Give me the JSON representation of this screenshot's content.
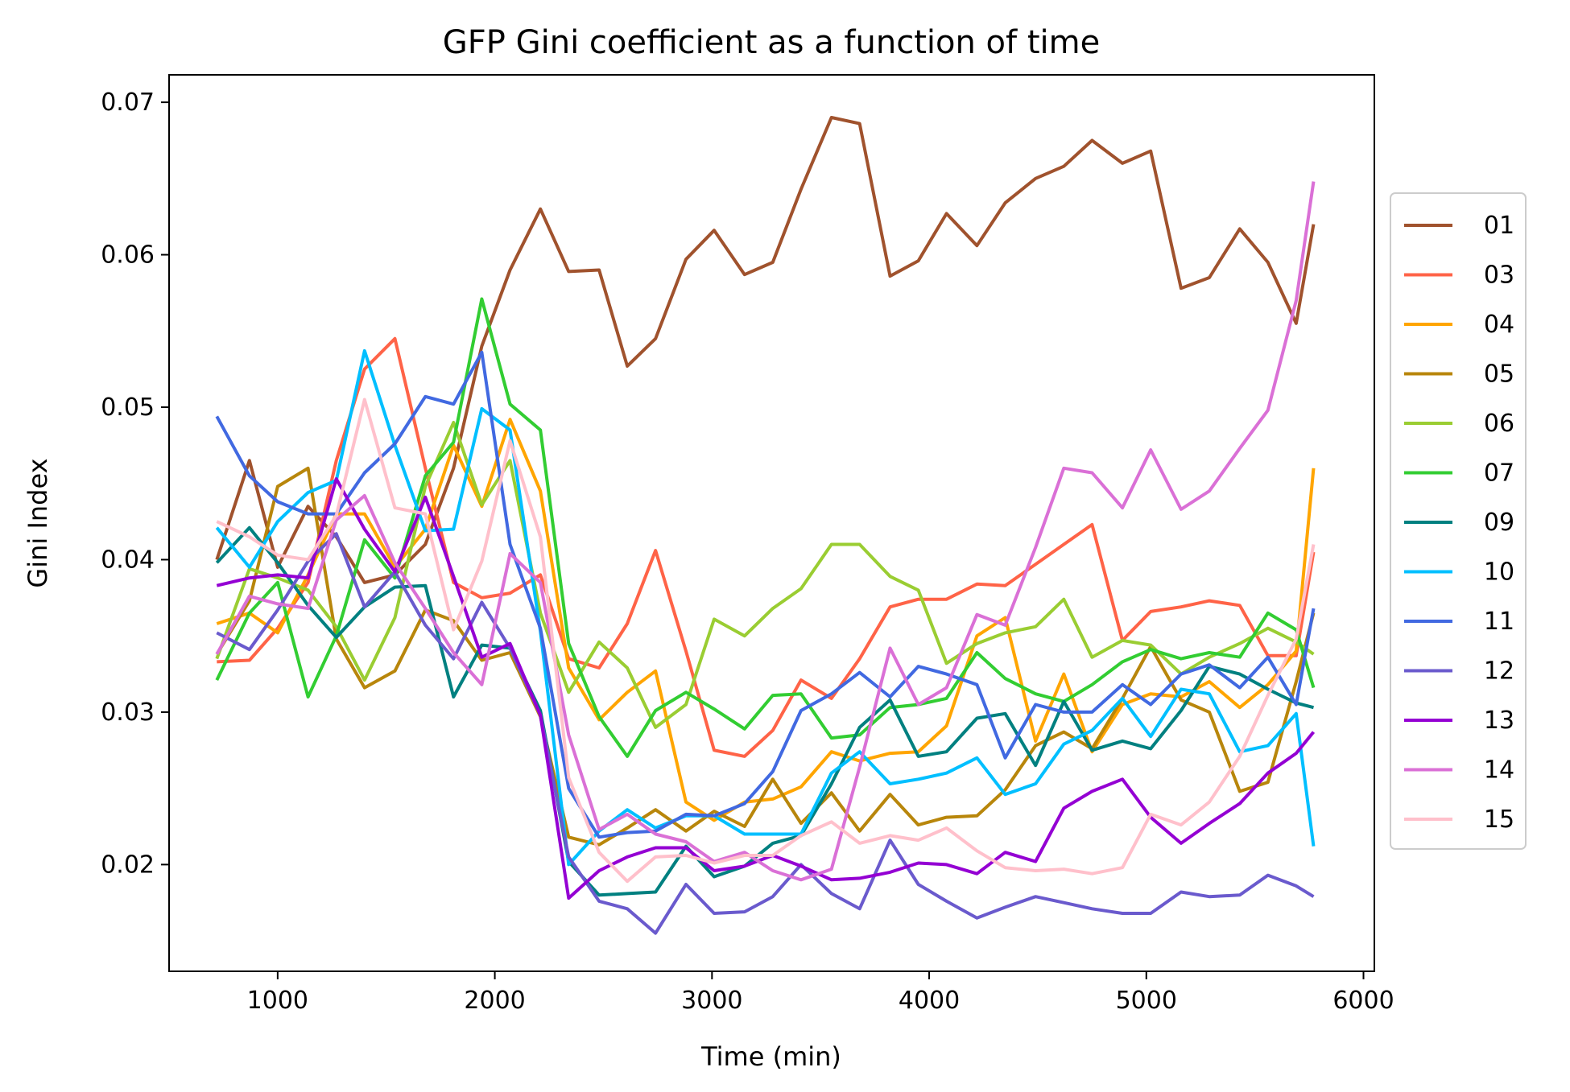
{
  "chart_data": {
    "type": "line",
    "title": "GFP Gini coefficient as a function of time",
    "xlabel": "Time (min)",
    "ylabel": "Gini Index",
    "xlim": [
      500,
      6050
    ],
    "ylim": [
      0.013,
      0.0718
    ],
    "xticks": [
      1000,
      2000,
      3000,
      4000,
      5000,
      6000
    ],
    "xtick_labels": [
      "1000",
      "2000",
      "3000",
      "4000",
      "5000",
      "6000"
    ],
    "yticks": [
      0.02,
      0.03,
      0.04,
      0.05,
      0.06,
      0.07
    ],
    "ytick_labels": [
      "0.02",
      "0.03",
      "0.04",
      "0.05",
      "0.06",
      "0.07"
    ],
    "grid": false,
    "legend_position": "center-right outside",
    "x": [
      720,
      870,
      1000,
      1140,
      1270,
      1400,
      1540,
      1680,
      1810,
      1940,
      2070,
      2210,
      2340,
      2480,
      2610,
      2740,
      2880,
      3010,
      3150,
      3280,
      3410,
      3550,
      3680,
      3820,
      3950,
      4080,
      4220,
      4350,
      4490,
      4620,
      4750,
      4890,
      5020,
      5160,
      5290,
      5430,
      5560,
      5690,
      5770
    ],
    "series": [
      {
        "name": "01",
        "color": "#a0522d",
        "values": [
          0.04,
          0.0465,
          0.0395,
          0.0435,
          0.0415,
          0.0385,
          0.039,
          0.041,
          0.046,
          0.054,
          0.059,
          0.063,
          0.0589,
          0.059,
          0.0527,
          0.0545,
          0.0597,
          0.0616,
          0.0587,
          0.0595,
          0.0643,
          0.069,
          0.0686,
          0.0586,
          0.0596,
          0.0627,
          0.0606,
          0.0634,
          0.065,
          0.0658,
          0.0675,
          0.066,
          0.0668,
          0.0578,
          0.0585,
          0.0617,
          0.0595,
          0.0555,
          0.062
        ]
      },
      {
        "name": "03",
        "color": "#ff6347",
        "values": [
          0.0333,
          0.0334,
          0.0355,
          0.0385,
          0.0465,
          0.0525,
          0.0545,
          0.046,
          0.0385,
          0.0375,
          0.0378,
          0.039,
          0.0335,
          0.0329,
          0.0358,
          0.0406,
          0.034,
          0.0275,
          0.0271,
          0.0288,
          0.0321,
          0.0309,
          0.0335,
          0.0369,
          0.0374,
          0.0374,
          0.0384,
          0.0383,
          0.0397,
          0.041,
          0.0423,
          0.0347,
          0.0366,
          0.0369,
          0.0373,
          0.037,
          0.0337,
          0.0337,
          0.0405
        ]
      },
      {
        "name": "04",
        "color": "#ffa500",
        "values": [
          0.0358,
          0.0365,
          0.0352,
          0.039,
          0.043,
          0.043,
          0.0395,
          0.042,
          0.0475,
          0.0435,
          0.0492,
          0.0445,
          0.0329,
          0.0295,
          0.0313,
          0.0327,
          0.0241,
          0.0229,
          0.0241,
          0.0243,
          0.0251,
          0.0274,
          0.0268,
          0.0273,
          0.0274,
          0.0291,
          0.035,
          0.0362,
          0.0281,
          0.0325,
          0.0274,
          0.0305,
          0.0312,
          0.031,
          0.032,
          0.0303,
          0.0318,
          0.034,
          0.046
        ]
      },
      {
        "name": "05",
        "color": "#b8860b",
        "values": [
          0.0338,
          0.0373,
          0.0448,
          0.046,
          0.0348,
          0.0316,
          0.0327,
          0.0367,
          0.036,
          0.0334,
          0.0339,
          0.0297,
          0.0218,
          0.0213,
          0.0224,
          0.0236,
          0.0222,
          0.0235,
          0.0225,
          0.0256,
          0.0227,
          0.0247,
          0.0222,
          0.0246,
          0.0226,
          0.0231,
          0.0232,
          0.0249,
          0.0278,
          0.0287,
          0.0276,
          0.0309,
          0.0343,
          0.0308,
          0.03,
          0.0248,
          0.0254,
          0.032,
          0.0365
        ]
      },
      {
        "name": "06",
        "color": "#9acd32",
        "values": [
          0.0335,
          0.0394,
          0.0388,
          0.038,
          0.0356,
          0.0321,
          0.0362,
          0.0448,
          0.049,
          0.0436,
          0.0465,
          0.0365,
          0.0313,
          0.0346,
          0.0329,
          0.029,
          0.0305,
          0.0361,
          0.035,
          0.0368,
          0.0381,
          0.041,
          0.041,
          0.0389,
          0.038,
          0.0332,
          0.0345,
          0.0352,
          0.0356,
          0.0374,
          0.0336,
          0.0347,
          0.0344,
          0.0325,
          0.0336,
          0.0345,
          0.0355,
          0.0346,
          0.0338
        ]
      },
      {
        "name": "07",
        "color": "#32cd32",
        "values": [
          0.0321,
          0.0365,
          0.0385,
          0.031,
          0.035,
          0.0413,
          0.0388,
          0.0455,
          0.0477,
          0.0571,
          0.0502,
          0.0485,
          0.0345,
          0.0297,
          0.0271,
          0.0301,
          0.0313,
          0.0302,
          0.0289,
          0.0311,
          0.0312,
          0.0283,
          0.0285,
          0.0303,
          0.0305,
          0.0309,
          0.0339,
          0.0322,
          0.0312,
          0.0307,
          0.0318,
          0.0333,
          0.0341,
          0.0335,
          0.0339,
          0.0336,
          0.0365,
          0.0354,
          0.0316
        ]
      },
      {
        "name": "09",
        "color": "#008080",
        "values": [
          0.0398,
          0.0421,
          0.0398,
          0.037,
          0.0349,
          0.0369,
          0.0382,
          0.0383,
          0.031,
          0.0344,
          0.0342,
          0.0301,
          0.0202,
          0.018,
          0.0181,
          0.0182,
          0.0212,
          0.0192,
          0.0199,
          0.0214,
          0.0219,
          0.0253,
          0.029,
          0.0308,
          0.0271,
          0.0274,
          0.0296,
          0.0299,
          0.0265,
          0.0307,
          0.0275,
          0.0281,
          0.0276,
          0.0301,
          0.033,
          0.0325,
          0.0315,
          0.0306,
          0.0303
        ]
      },
      {
        "name": "10",
        "color": "#00bfff",
        "values": [
          0.0421,
          0.0395,
          0.0425,
          0.0444,
          0.0452,
          0.0537,
          0.0475,
          0.0419,
          0.042,
          0.0499,
          0.0485,
          0.0353,
          0.02,
          0.0222,
          0.0236,
          0.0224,
          0.0232,
          0.0232,
          0.022,
          0.022,
          0.022,
          0.026,
          0.0274,
          0.0253,
          0.0256,
          0.026,
          0.027,
          0.0246,
          0.0253,
          0.0279,
          0.0288,
          0.0309,
          0.0284,
          0.0315,
          0.0312,
          0.0274,
          0.0278,
          0.0299,
          0.0212
        ]
      },
      {
        "name": "11",
        "color": "#4169e1",
        "values": [
          0.0494,
          0.0455,
          0.0438,
          0.043,
          0.043,
          0.0457,
          0.0476,
          0.0507,
          0.0502,
          0.0536,
          0.041,
          0.0355,
          0.025,
          0.0218,
          0.0221,
          0.0222,
          0.0233,
          0.0232,
          0.024,
          0.0261,
          0.0301,
          0.0312,
          0.0326,
          0.031,
          0.033,
          0.0325,
          0.0318,
          0.027,
          0.0305,
          0.03,
          0.03,
          0.0318,
          0.0305,
          0.0325,
          0.0331,
          0.0316,
          0.0336,
          0.0305,
          0.0368
        ]
      },
      {
        "name": "12",
        "color": "#6a5acd",
        "values": [
          0.0352,
          0.0341,
          0.0367,
          0.0399,
          0.0417,
          0.0369,
          0.0392,
          0.0357,
          0.0335,
          0.0372,
          0.0342,
          0.0298,
          0.0205,
          0.0176,
          0.0171,
          0.0155,
          0.0187,
          0.0168,
          0.0169,
          0.0179,
          0.02,
          0.0181,
          0.0171,
          0.0216,
          0.0187,
          0.0176,
          0.0165,
          0.0172,
          0.0179,
          0.0175,
          0.0171,
          0.0168,
          0.0168,
          0.0182,
          0.0179,
          0.018,
          0.0193,
          0.0186,
          0.0179
        ]
      },
      {
        "name": "13",
        "color": "#9400d3",
        "values": [
          0.0383,
          0.0388,
          0.039,
          0.0388,
          0.0453,
          0.042,
          0.0392,
          0.0441,
          0.0389,
          0.0336,
          0.0345,
          0.0298,
          0.0178,
          0.0196,
          0.0205,
          0.0211,
          0.0211,
          0.0196,
          0.0199,
          0.0206,
          0.0199,
          0.019,
          0.0191,
          0.0195,
          0.0201,
          0.02,
          0.0194,
          0.0208,
          0.0202,
          0.0237,
          0.0248,
          0.0256,
          0.0231,
          0.0214,
          0.0227,
          0.024,
          0.026,
          0.0273,
          0.0287
        ]
      },
      {
        "name": "14",
        "color": "#da70d6",
        "values": [
          0.0338,
          0.0376,
          0.0371,
          0.0368,
          0.0426,
          0.0442,
          0.0398,
          0.0368,
          0.0339,
          0.0318,
          0.0404,
          0.0385,
          0.0285,
          0.0223,
          0.0233,
          0.022,
          0.0215,
          0.0202,
          0.0208,
          0.0196,
          0.019,
          0.0197,
          0.0264,
          0.0342,
          0.0305,
          0.0316,
          0.0364,
          0.0357,
          0.0408,
          0.046,
          0.0457,
          0.0434,
          0.0472,
          0.0433,
          0.0445,
          0.0473,
          0.0498,
          0.057,
          0.0648
        ]
      },
      {
        "name": "15",
        "color": "#ffc0cb",
        "values": [
          0.0425,
          0.0415,
          0.0403,
          0.04,
          0.0429,
          0.0505,
          0.0434,
          0.043,
          0.0354,
          0.0399,
          0.0478,
          0.0415,
          0.0257,
          0.0208,
          0.0189,
          0.0205,
          0.0206,
          0.0201,
          0.0206,
          0.0206,
          0.0219,
          0.0228,
          0.0214,
          0.0219,
          0.0216,
          0.0224,
          0.0209,
          0.0198,
          0.0196,
          0.0197,
          0.0194,
          0.0198,
          0.0233,
          0.0226,
          0.0241,
          0.0271,
          0.0311,
          0.0348,
          0.041
        ]
      }
    ]
  }
}
